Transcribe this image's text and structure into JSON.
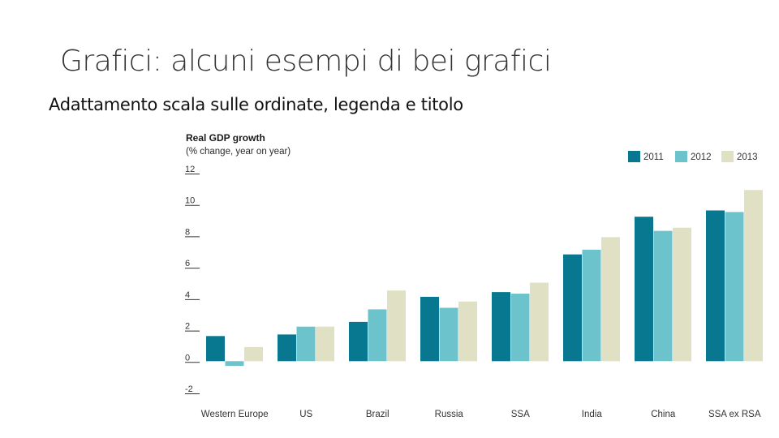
{
  "slide": {
    "title": "Grafici: alcuni esempi di bei grafici",
    "subtitle": "Adattamento scala sulle ordinate, legenda e titolo"
  },
  "colors": {
    "2011": "#087890",
    "2012": "#6cc3cc",
    "2013": "#dfe0c4"
  },
  "chart_data": {
    "type": "bar",
    "title": "Real GDP growth",
    "subtitle": "(% change, year on year)",
    "categories": [
      "Western Europe",
      "US",
      "Brazil",
      "Russia",
      "SSA",
      "India",
      "China",
      "SSA ex RSA"
    ],
    "series": [
      {
        "name": "2011",
        "values": [
          1.6,
          1.7,
          2.5,
          4.1,
          4.4,
          6.8,
          9.2,
          9.6
        ]
      },
      {
        "name": "2012",
        "values": [
          -0.3,
          2.2,
          3.3,
          3.4,
          4.3,
          7.1,
          8.3,
          9.5
        ]
      },
      {
        "name": "2013",
        "values": [
          0.9,
          2.2,
          4.5,
          3.8,
          5.0,
          7.9,
          8.5,
          10.9
        ]
      }
    ],
    "ylim": [
      -2,
      12
    ],
    "yticks": [
      "12",
      "10",
      "8",
      "6",
      "4",
      "2",
      "0",
      "-2"
    ],
    "legend": "top-right",
    "grid": false
  }
}
